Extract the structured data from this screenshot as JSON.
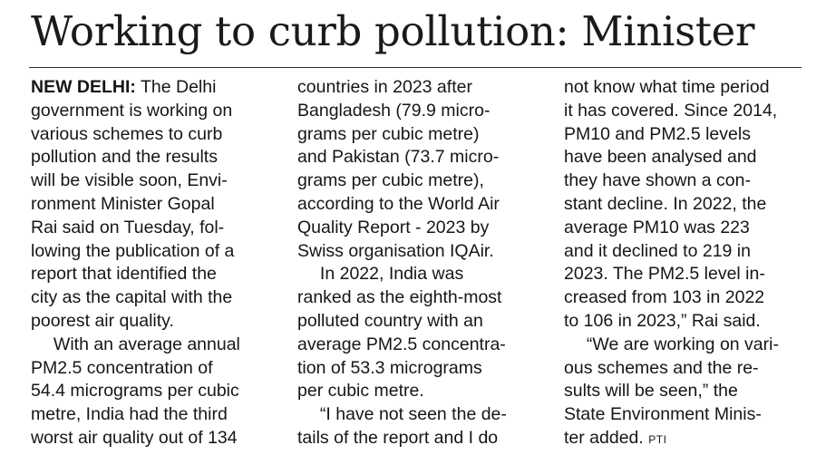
{
  "headline": "Working to curb pollution: Minister",
  "dateline": "NEW DELHI:",
  "credit": "PTI",
  "columns": [
    [
      " The Delhi",
      "government is working on",
      "various schemes to curb",
      "pollution and the results",
      "will be visible soon, Envi-",
      "ronment Minister Gopal",
      "Rai said on Tuesday, fol-",
      "lowing the publication of a",
      "report that identified the",
      "city as the capital with the",
      "poorest air quality.",
      "  With an average annual",
      "PM2.5 concentration of",
      "54.4 micrograms per cubic",
      "metre, India had the third",
      "worst air quality out of 134"
    ],
    [
      "countries in 2023 after",
      "Bangladesh (79.9 micro-",
      "grams per cubic metre)",
      "and Pakistan (73.7 micro-",
      "grams per cubic metre),",
      "according to the World Air",
      "Quality Report - 2023 by",
      "Swiss organisation IQAir.",
      "  In 2022, India was",
      "ranked as the eighth-most",
      "polluted country with an",
      "average PM2.5 concentra-",
      "tion of 53.3 micrograms",
      "per cubic metre.",
      "  “I have not seen the de-",
      "tails of the report and I do"
    ],
    [
      "not know what time period",
      "it has covered. Since 2014,",
      "PM10 and PM2.5 levels",
      "have been analysed and",
      "they have shown a con-",
      "stant decline. In 2022, the",
      "average PM10 was 223",
      "and it declined to 219 in",
      "2023. The PM2.5 level in-",
      "creased from 103 in 2022",
      "to 106 in 2023,” Rai said.",
      "  “We are working on vari-",
      "ous schemes and the re-",
      "sults will be seen,” the",
      "State Environment Minis-",
      "ter added."
    ]
  ]
}
